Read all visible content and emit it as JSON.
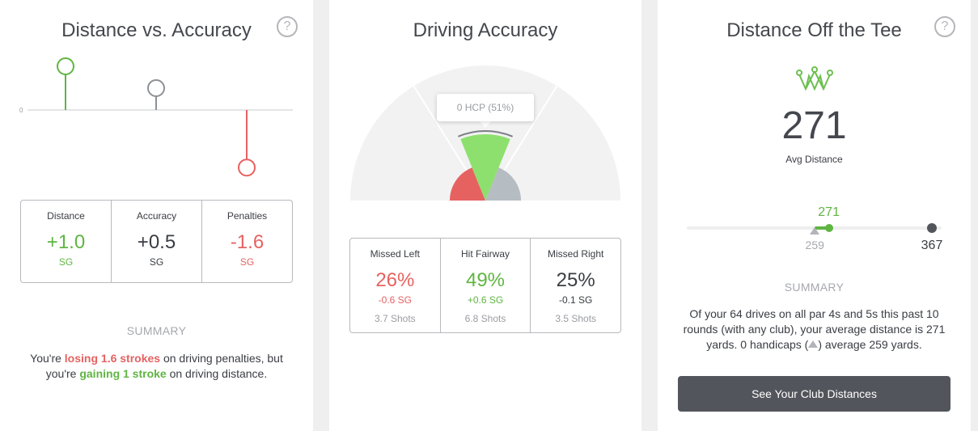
{
  "distance_accuracy": {
    "title": "Distance vs. Accuracy",
    "help": "?",
    "zero_label": "0",
    "lollipop_values": [
      1.0,
      0.5,
      -1.6
    ],
    "colors": [
      "#5fb542",
      "#8d9096",
      "#e66261"
    ],
    "stats": [
      {
        "label": "Distance",
        "value": "+1.0",
        "unit": "SG"
      },
      {
        "label": "Accuracy",
        "value": "+0.5",
        "unit": "SG"
      },
      {
        "label": "Penalties",
        "value": "-1.6",
        "unit": "SG"
      }
    ],
    "summary_heading": "SUMMARY",
    "summary": {
      "p1": "You're ",
      "p2": "losing 1.6 strokes",
      "p3": " on driving penalties, but",
      "p4": "you're ",
      "p5": "gaining 1 stroke",
      "p6": " on driving distance."
    }
  },
  "driving_accuracy": {
    "title": "Driving Accuracy",
    "tooltip": "0 HCP (51%)",
    "fan": [
      {
        "name": "Missed Left",
        "pct": 26,
        "color": "#e66261"
      },
      {
        "name": "Hit Fairway",
        "pct": 49,
        "color": "#8ee06e"
      },
      {
        "name": "Missed Right",
        "pct": 25,
        "color": "#b5bcc2"
      }
    ],
    "handicap_fairway_pct": 51,
    "stats": [
      {
        "label": "Missed Left",
        "value": "26%",
        "sg": "-0.6 SG",
        "shots": "3.7 Shots"
      },
      {
        "label": "Hit Fairway",
        "value": "49%",
        "sg": "+0.6 SG",
        "shots": "6.8 Shots"
      },
      {
        "label": "Missed Right",
        "value": "25%",
        "sg": "-0.1 SG",
        "shots": "3.5 Shots"
      }
    ]
  },
  "distance_tee": {
    "title": "Distance Off the Tee",
    "help": "?",
    "icon": "crown-icon",
    "avg_value": "271",
    "avg_label": "Avg Distance",
    "slider": {
      "current": 271,
      "current_label": "271",
      "handicap": 259,
      "handicap_label": "259",
      "max": 367,
      "max_label": "367"
    },
    "summary_heading": "SUMMARY",
    "summary": {
      "line1": "Of your 64 drives on all par 4s and 5s this past 10",
      "line2": "rounds (with any club), your average distance is 271",
      "line3a": "yards. 0 handicaps (",
      "line3b": ") average 259 yards."
    },
    "button_label": "See Your Club Distances"
  }
}
